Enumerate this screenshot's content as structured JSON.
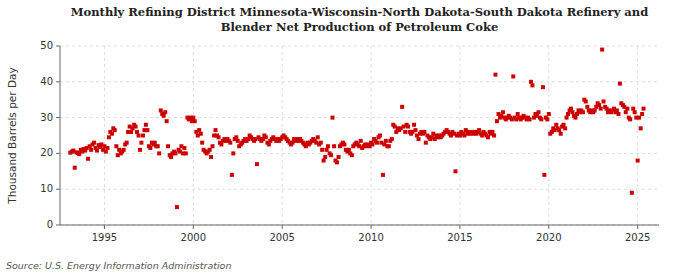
{
  "chart_data": {
    "type": "scatter",
    "title": "Monthly Refining District Minnesota-Wisconsin-North Dakota-South Dakota Refinery and\nBlender Net Production of Petroleum Coke",
    "y_label": "Thousand Barrels per Day",
    "annotations": [
      "Source: U.S. Energy Information Administration"
    ],
    "color": "#cc0000",
    "marker": "square",
    "grid": true,
    "xlim": [
      1992.5,
      2026.2
    ],
    "xticks": [
      1995,
      2000,
      2005,
      2010,
      2015,
      2020,
      2025
    ],
    "ylim": [
      0,
      50
    ],
    "yticks": [
      0,
      10,
      20,
      30,
      40,
      50
    ],
    "x": [
      1993.08,
      1993.17,
      1993.25,
      1993.33,
      1993.42,
      1993.5,
      1993.58,
      1993.67,
      1993.75,
      1993.83,
      1993.92,
      1994.0,
      1994.08,
      1994.17,
      1994.25,
      1994.33,
      1994.42,
      1994.5,
      1994.58,
      1994.67,
      1994.75,
      1994.83,
      1994.92,
      1995.0,
      1995.08,
      1995.17,
      1995.25,
      1995.33,
      1995.42,
      1995.5,
      1995.58,
      1995.67,
      1995.75,
      1995.83,
      1995.92,
      1996.0,
      1996.08,
      1996.17,
      1996.25,
      1996.33,
      1996.42,
      1996.5,
      1996.58,
      1996.67,
      1996.75,
      1996.83,
      1996.92,
      1997.0,
      1997.08,
      1997.17,
      1997.25,
      1997.33,
      1997.42,
      1997.5,
      1997.58,
      1997.67,
      1997.75,
      1997.83,
      1997.92,
      1998.0,
      1998.08,
      1998.17,
      1998.25,
      1998.33,
      1998.42,
      1998.5,
      1998.58,
      1998.67,
      1998.75,
      1998.83,
      1998.92,
      1999.0,
      1999.08,
      1999.17,
      1999.25,
      1999.33,
      1999.42,
      1999.5,
      1999.58,
      1999.67,
      1999.75,
      1999.83,
      1999.92,
      2000.0,
      2000.08,
      2000.17,
      2000.25,
      2000.33,
      2000.42,
      2000.5,
      2000.58,
      2000.67,
      2000.75,
      2000.83,
      2000.92,
      2001.0,
      2001.08,
      2001.17,
      2001.25,
      2001.33,
      2001.42,
      2001.5,
      2001.58,
      2001.67,
      2001.75,
      2001.83,
      2001.92,
      2002.0,
      2002.08,
      2002.17,
      2002.25,
      2002.33,
      2002.42,
      2002.5,
      2002.58,
      2002.67,
      2002.75,
      2002.83,
      2002.92,
      2003.0,
      2003.08,
      2003.17,
      2003.25,
      2003.33,
      2003.42,
      2003.5,
      2003.58,
      2003.67,
      2003.75,
      2003.83,
      2003.92,
      2004.0,
      2004.08,
      2004.17,
      2004.25,
      2004.33,
      2004.42,
      2004.5,
      2004.58,
      2004.67,
      2004.75,
      2004.83,
      2004.92,
      2005.0,
      2005.08,
      2005.17,
      2005.25,
      2005.33,
      2005.42,
      2005.5,
      2005.58,
      2005.67,
      2005.75,
      2005.83,
      2005.92,
      2006.0,
      2006.08,
      2006.17,
      2006.25,
      2006.33,
      2006.42,
      2006.5,
      2006.58,
      2006.67,
      2006.75,
      2006.83,
      2006.92,
      2007.0,
      2007.08,
      2007.17,
      2007.25,
      2007.33,
      2007.42,
      2007.5,
      2007.58,
      2007.67,
      2007.75,
      2007.83,
      2007.92,
      2008.0,
      2008.08,
      2008.17,
      2008.25,
      2008.33,
      2008.42,
      2008.5,
      2008.58,
      2008.67,
      2008.75,
      2008.83,
      2008.92,
      2009.0,
      2009.08,
      2009.17,
      2009.25,
      2009.33,
      2009.42,
      2009.5,
      2009.58,
      2009.67,
      2009.75,
      2009.83,
      2009.92,
      2010.0,
      2010.08,
      2010.17,
      2010.25,
      2010.33,
      2010.42,
      2010.5,
      2010.58,
      2010.67,
      2010.75,
      2010.83,
      2010.92,
      2011.0,
      2011.08,
      2011.17,
      2011.25,
      2011.33,
      2011.42,
      2011.5,
      2011.58,
      2011.67,
      2011.75,
      2011.83,
      2011.92,
      2012.0,
      2012.08,
      2012.17,
      2012.25,
      2012.33,
      2012.42,
      2012.5,
      2012.58,
      2012.67,
      2012.75,
      2012.83,
      2012.92,
      2013.0,
      2013.08,
      2013.17,
      2013.25,
      2013.33,
      2013.42,
      2013.5,
      2013.58,
      2013.67,
      2013.75,
      2013.83,
      2013.92,
      2014.0,
      2014.08,
      2014.17,
      2014.25,
      2014.33,
      2014.42,
      2014.5,
      2014.58,
      2014.67,
      2014.75,
      2014.83,
      2014.92,
      2015.0,
      2015.08,
      2015.17,
      2015.25,
      2015.33,
      2015.42,
      2015.5,
      2015.58,
      2015.67,
      2015.75,
      2015.83,
      2015.92,
      2016.0,
      2016.08,
      2016.17,
      2016.25,
      2016.33,
      2016.42,
      2016.5,
      2016.58,
      2016.67,
      2016.75,
      2016.83,
      2016.92,
      2017.0,
      2017.08,
      2017.17,
      2017.25,
      2017.33,
      2017.42,
      2017.5,
      2017.58,
      2017.67,
      2017.75,
      2017.83,
      2017.92,
      2018.0,
      2018.08,
      2018.17,
      2018.25,
      2018.33,
      2018.42,
      2018.5,
      2018.58,
      2018.67,
      2018.75,
      2018.83,
      2018.92,
      2019.0,
      2019.08,
      2019.17,
      2019.25,
      2019.33,
      2019.42,
      2019.5,
      2019.58,
      2019.67,
      2019.75,
      2019.83,
      2019.92,
      2020.0,
      2020.08,
      2020.17,
      2020.25,
      2020.33,
      2020.42,
      2020.5,
      2020.58,
      2020.67,
      2020.75,
      2020.83,
      2020.92,
      2021.0,
      2021.08,
      2021.17,
      2021.25,
      2021.33,
      2021.42,
      2021.5,
      2021.58,
      2021.67,
      2021.75,
      2021.83,
      2021.92,
      2022.0,
      2022.08,
      2022.17,
      2022.25,
      2022.33,
      2022.42,
      2022.5,
      2022.58,
      2022.67,
      2022.75,
      2022.83,
      2022.92,
      2023.0,
      2023.08,
      2023.17,
      2023.25,
      2023.33,
      2023.42,
      2023.5,
      2023.58,
      2023.67,
      2023.75,
      2023.83,
      2023.92,
      2024.0,
      2024.08,
      2024.17,
      2024.25,
      2024.33,
      2024.42,
      2024.5,
      2024.58,
      2024.67,
      2024.75,
      2024.83,
      2024.92,
      2025.0,
      2025.08,
      2025.17,
      2025.25,
      2025.33
    ],
    "values": [
      20.2,
      20.5,
      20.8,
      16.0,
      20.3,
      20.1,
      19.8,
      21.0,
      20.5,
      21.2,
      20.8,
      21.5,
      18.5,
      22.0,
      21.0,
      22.5,
      23.0,
      21.5,
      20.8,
      22.3,
      21.8,
      22.5,
      21.0,
      22.0,
      20.5,
      21.5,
      24.5,
      26.0,
      25.5,
      27.0,
      26.5,
      22.0,
      19.5,
      21.0,
      20.0,
      20.5,
      21.0,
      22.5,
      23.0,
      26.0,
      27.5,
      26.0,
      27.0,
      28.0,
      27.5,
      26.0,
      25.0,
      21.0,
      23.0,
      25.0,
      26.5,
      28.0,
      26.5,
      22.0,
      21.5,
      23.0,
      22.5,
      23.0,
      22.0,
      22.0,
      20.0,
      32.0,
      31.0,
      30.5,
      31.5,
      29.0,
      22.0,
      19.5,
      19.0,
      20.0,
      20.5,
      20.0,
      5.0,
      21.0,
      20.5,
      22.0,
      20.0,
      21.5,
      20.0,
      30.0,
      29.5,
      30.0,
      29.0,
      30.0,
      29.0,
      26.0,
      25.0,
      26.5,
      25.5,
      23.0,
      21.0,
      20.5,
      20.0,
      20.5,
      21.0,
      19.0,
      22.0,
      25.0,
      26.5,
      25.0,
      24.5,
      23.0,
      22.5,
      23.5,
      24.0,
      23.5,
      24.0,
      23.5,
      23.0,
      14.0,
      20.0,
      24.0,
      24.5,
      23.5,
      22.0,
      22.5,
      23.0,
      23.5,
      24.0,
      23.5,
      24.0,
      25.0,
      24.5,
      24.0,
      23.5,
      24.0,
      17.0,
      24.5,
      24.0,
      23.5,
      24.0,
      25.0,
      24.5,
      23.0,
      22.5,
      23.5,
      24.0,
      24.5,
      24.0,
      23.5,
      24.0,
      23.5,
      24.0,
      24.5,
      25.0,
      24.5,
      24.0,
      23.5,
      23.0,
      22.5,
      23.0,
      24.0,
      23.5,
      24.0,
      23.5,
      24.0,
      23.5,
      23.0,
      22.5,
      22.0,
      23.0,
      22.5,
      23.0,
      23.5,
      24.0,
      23.5,
      23.0,
      24.5,
      22.5,
      23.0,
      21.0,
      18.0,
      19.0,
      21.0,
      22.0,
      20.0,
      19.5,
      30.0,
      22.0,
      18.0,
      17.5,
      19.0,
      22.0,
      22.5,
      23.0,
      22.5,
      21.0,
      20.5,
      21.0,
      20.0,
      19.5,
      22.0,
      22.5,
      23.0,
      22.5,
      22.0,
      23.5,
      21.5,
      22.0,
      22.5,
      22.0,
      22.5,
      22.0,
      23.0,
      22.5,
      24.0,
      23.5,
      23.0,
      24.5,
      25.0,
      23.0,
      14.0,
      22.5,
      23.5,
      22.0,
      22.0,
      23.5,
      24.0,
      28.0,
      27.5,
      26.0,
      27.0,
      26.5,
      27.0,
      33.0,
      27.5,
      26.0,
      28.0,
      27.5,
      26.0,
      25.5,
      26.0,
      28.0,
      26.5,
      25.0,
      24.0,
      25.5,
      26.0,
      25.5,
      26.0,
      23.0,
      25.0,
      24.5,
      24.0,
      24.5,
      25.5,
      24.0,
      25.0,
      24.5,
      25.0,
      24.5,
      25.0,
      25.5,
      26.0,
      26.5,
      26.0,
      25.5,
      25.0,
      26.0,
      25.5,
      15.0,
      25.0,
      25.5,
      25.0,
      26.0,
      25.5,
      25.0,
      26.5,
      25.5,
      26.0,
      25.5,
      26.0,
      25.5,
      26.0,
      25.5,
      26.0,
      26.5,
      25.5,
      25.0,
      26.0,
      25.5,
      25.0,
      24.5,
      26.0,
      25.5,
      26.0,
      25.0,
      42.0,
      29.0,
      31.0,
      30.0,
      30.5,
      31.5,
      30.0,
      29.5,
      30.0,
      30.5,
      30.0,
      29.5,
      41.5,
      30.0,
      29.5,
      31.0,
      30.0,
      29.5,
      30.0,
      30.5,
      30.0,
      29.5,
      30.0,
      29.5,
      40.0,
      39.0,
      30.0,
      31.0,
      30.5,
      31.5,
      30.0,
      29.5,
      38.5,
      14.0,
      30.0,
      29.5,
      31.0,
      25.5,
      26.0,
      27.0,
      26.5,
      28.0,
      27.0,
      26.5,
      25.5,
      27.5,
      28.0,
      27.0,
      30.0,
      31.0,
      32.0,
      32.5,
      31.5,
      30.5,
      30.0,
      31.0,
      32.0,
      31.5,
      32.0,
      31.5,
      35.0,
      34.5,
      33.0,
      32.0,
      31.5,
      32.0,
      31.5,
      32.0,
      33.0,
      34.0,
      33.5,
      32.5,
      49.0,
      34.5,
      33.0,
      32.5,
      31.5,
      32.0,
      31.5,
      32.0,
      32.5,
      31.5,
      32.0,
      31.0,
      39.5,
      34.0,
      33.5,
      33.0,
      31.5,
      32.5,
      30.0,
      29.5,
      9.0,
      32.5,
      31.5,
      30.0,
      18.0,
      30.0,
      27.0,
      31.0,
      32.5
    ]
  }
}
